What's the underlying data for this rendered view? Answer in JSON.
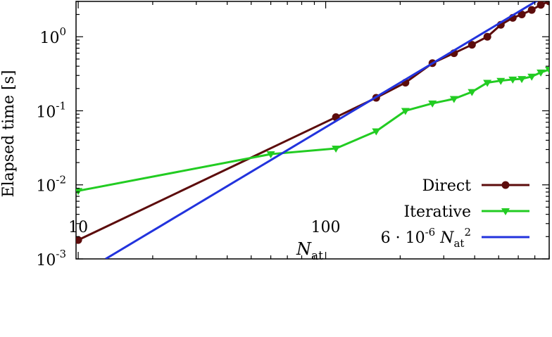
{
  "chart_data": {
    "type": "line",
    "xscale": "log",
    "yscale": "log",
    "xlim": [
      9.8,
      800
    ],
    "ylim": [
      0.001,
      3
    ],
    "xticks": [
      {
        "value": 10,
        "label": "10"
      },
      {
        "value": 100,
        "label": "100"
      }
    ],
    "yticks": [
      {
        "value": 0.001,
        "base": "10",
        "exp": "-3"
      },
      {
        "value": 0.01,
        "base": "10",
        "exp": "-2"
      },
      {
        "value": 0.1,
        "base": "10",
        "exp": "-1"
      },
      {
        "value": 1,
        "base": "10",
        "exp": "0"
      }
    ],
    "xlabel": {
      "main": "N",
      "sub": "at"
    },
    "ylabel": "Elapsed time [s]",
    "grid": false,
    "legend_position": "bottom-right",
    "series": [
      {
        "name": "Direct",
        "color": "#5c0c0c",
        "marker": "circle",
        "x": [
          10,
          110,
          160,
          210,
          270,
          330,
          390,
          450,
          510,
          570,
          620,
          680,
          740,
          800
        ],
        "y": [
          0.0018,
          0.082,
          0.15,
          0.24,
          0.44,
          0.6,
          0.78,
          1.0,
          1.45,
          1.8,
          2.0,
          2.3,
          2.7,
          3.0
        ]
      },
      {
        "name": "Iterative",
        "color": "#22cc22",
        "marker": "triangle-down",
        "x": [
          10,
          60,
          110,
          160,
          210,
          270,
          330,
          390,
          450,
          510,
          570,
          620,
          680,
          740,
          800
        ],
        "y": [
          0.0083,
          0.026,
          0.031,
          0.053,
          0.1,
          0.126,
          0.145,
          0.18,
          0.24,
          0.255,
          0.265,
          0.27,
          0.29,
          0.33,
          0.36
        ]
      },
      {
        "name_parts": {
          "prefix": "6 · 10",
          "exp": "-6",
          "var": "N",
          "sub": "at",
          "pow": "2"
        },
        "color": "#2233dd",
        "marker": "none",
        "function": {
          "coef": 6e-06,
          "power": 2
        },
        "x": [
          12.9,
          800
        ]
      }
    ]
  }
}
